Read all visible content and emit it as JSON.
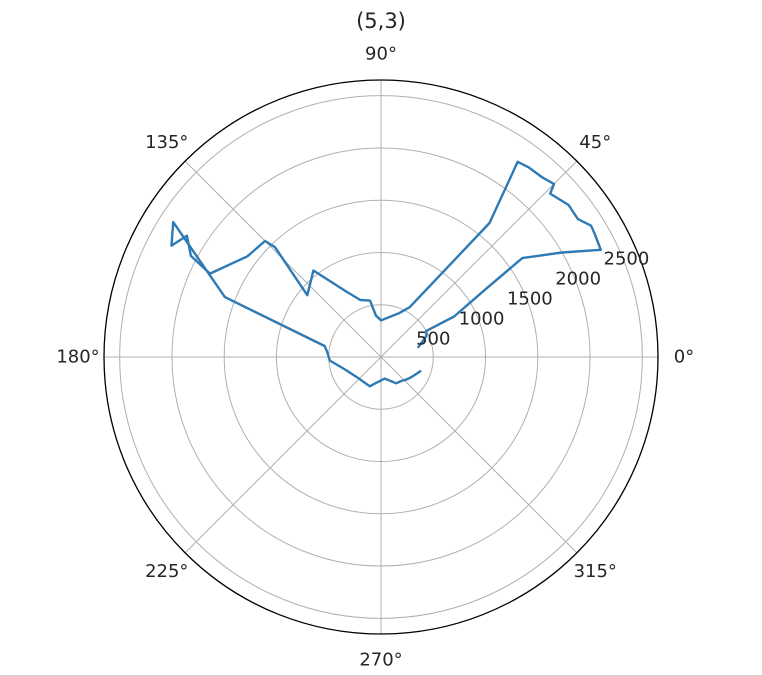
{
  "chart_data": {
    "type": "line",
    "subtype": "polar",
    "title": "(5,3)",
    "angle_unit": "degrees",
    "angle_ticks": [
      0,
      45,
      90,
      135,
      180,
      225,
      270,
      315
    ],
    "angle_tick_labels": [
      "0°",
      "45°",
      "90°",
      "135°",
      "180°",
      "225°",
      "270°",
      "315°"
    ],
    "r_ticks": [
      500,
      1000,
      1500,
      2000,
      2500
    ],
    "r_tick_labels": [
      "500",
      "1000",
      "1500",
      "2000",
      "2500"
    ],
    "r_tick_label_angle_deg": 22.5,
    "rlim": [
      0,
      2650
    ],
    "grid": true,
    "series": [
      {
        "color": "#2e7ab5",
        "points": [
          [
            15,
            370
          ],
          [
            25,
            480
          ],
          [
            30,
            500
          ],
          [
            29,
            800
          ],
          [
            33,
            1200
          ],
          [
            35,
            1650
          ],
          [
            30,
            2000
          ],
          [
            26,
            2340
          ],
          [
            30,
            2360
          ],
          [
            32,
            2370
          ],
          [
            35,
            2300
          ],
          [
            39,
            2310
          ],
          [
            44,
            2250
          ],
          [
            45,
            2340
          ],
          [
            48,
            2310
          ],
          [
            52,
            2300
          ],
          [
            55,
            2280
          ],
          [
            51,
            1650
          ],
          [
            60,
            550
          ],
          [
            68,
            450
          ],
          [
            90,
            350
          ],
          [
            97,
            400
          ],
          [
            101,
            550
          ],
          [
            110,
            580
          ],
          [
            118,
            710
          ],
          [
            128,
            1050
          ],
          [
            140,
            920
          ],
          [
            134,
            1460
          ],
          [
            135,
            1570
          ],
          [
            143,
            1600
          ],
          [
            154,
            1820
          ],
          [
            152,
            2060
          ],
          [
            148,
            2190
          ],
          [
            152,
            2270
          ],
          [
            147,
            2370
          ],
          [
            159,
            1600
          ],
          [
            169,
            550
          ],
          [
            174,
            520
          ],
          [
            184,
            490
          ],
          [
            198,
            370
          ],
          [
            220,
            300
          ],
          [
            249,
            300
          ],
          [
            260,
            250
          ],
          [
            280,
            210
          ],
          [
            300,
            290
          ],
          [
            310,
            300
          ],
          [
            320,
            330
          ],
          [
            330,
            360
          ],
          [
            340,
            400
          ]
        ]
      }
    ]
  }
}
